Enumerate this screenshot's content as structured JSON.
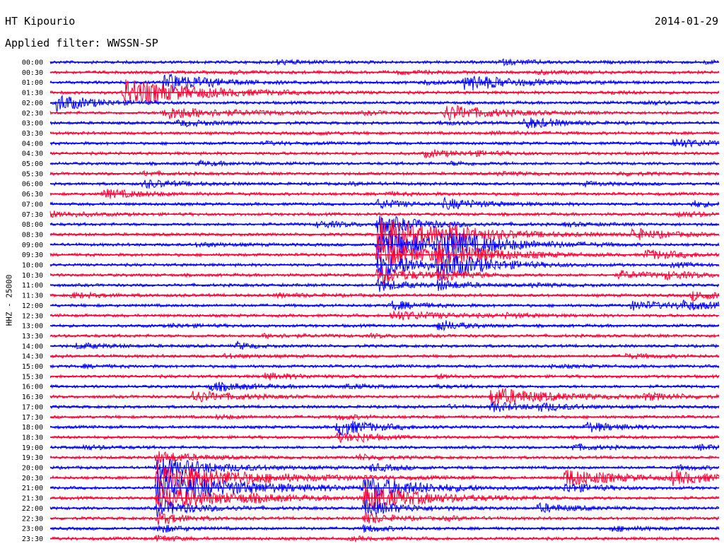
{
  "header": {
    "station": "HT Kipourio",
    "date": "2014-01-29",
    "filter_label": "Applied filter: WWSSN-SP"
  },
  "chart_data": {
    "type": "line",
    "title": "HT Kipourio",
    "subtitle": "Applied filter: WWSSN-SP",
    "ylabel": "HHZ - 25000",
    "xlabel": "",
    "trace_minutes": 30,
    "colors": [
      "#0000ff",
      "#ff0033"
    ],
    "traces": [
      {
        "label": "00:00",
        "events": [
          {
            "t": 0.34,
            "a": 0.6,
            "d": 0.05
          },
          {
            "t": 0.67,
            "a": 0.7,
            "d": 0.06
          },
          {
            "t": 0.98,
            "a": 0.4,
            "d": 0.03
          }
        ]
      },
      {
        "label": "00:30",
        "events": [
          {
            "t": 0.27,
            "a": 0.4,
            "d": 0.04
          },
          {
            "t": 0.52,
            "a": 0.5,
            "d": 0.05
          },
          {
            "t": 0.73,
            "a": 0.5,
            "d": 0.04
          }
        ]
      },
      {
        "label": "01:00",
        "events": [
          {
            "t": 0.17,
            "a": 3.5,
            "d": 0.06
          },
          {
            "t": 0.62,
            "a": 2.6,
            "d": 0.07
          },
          {
            "t": 0.56,
            "a": 0.5,
            "d": 0.04
          }
        ]
      },
      {
        "label": "01:30",
        "events": [
          {
            "t": 0.11,
            "a": 4.5,
            "d": 0.1
          },
          {
            "t": 0.84,
            "a": 0.4,
            "d": 0.03
          }
        ]
      },
      {
        "label": "02:00",
        "events": [
          {
            "t": 0.01,
            "a": 2.8,
            "d": 0.05
          },
          {
            "t": 0.89,
            "a": 0.5,
            "d": 0.04
          }
        ]
      },
      {
        "label": "02:30",
        "events": [
          {
            "t": 0.17,
            "a": 2.0,
            "d": 0.09
          },
          {
            "t": 0.59,
            "a": 2.6,
            "d": 0.07
          },
          {
            "t": 0.47,
            "a": 0.4,
            "d": 0.04
          }
        ]
      },
      {
        "label": "03:00",
        "events": [
          {
            "t": 0.19,
            "a": 1.0,
            "d": 0.05
          },
          {
            "t": 0.71,
            "a": 1.8,
            "d": 0.05
          },
          {
            "t": 0.58,
            "a": 0.5,
            "d": 0.04
          }
        ]
      },
      {
        "label": "03:30",
        "events": [
          {
            "t": 0.39,
            "a": 0.4,
            "d": 0.04
          },
          {
            "t": 0.66,
            "a": 0.5,
            "d": 0.05
          }
        ]
      },
      {
        "label": "04:00",
        "events": [
          {
            "t": 0.93,
            "a": 1.5,
            "d": 0.05
          },
          {
            "t": 0.32,
            "a": 0.4,
            "d": 0.04
          }
        ]
      },
      {
        "label": "04:30",
        "events": [
          {
            "t": 0.56,
            "a": 1.0,
            "d": 0.06
          },
          {
            "t": 0.63,
            "a": 0.5,
            "d": 0.03
          }
        ]
      },
      {
        "label": "05:00",
        "events": [
          {
            "t": 0.22,
            "a": 0.6,
            "d": 0.05
          },
          {
            "t": 0.6,
            "a": 0.5,
            "d": 0.04
          }
        ]
      },
      {
        "label": "05:30",
        "events": [
          {
            "t": 0.14,
            "a": 0.6,
            "d": 0.03
          },
          {
            "t": 0.67,
            "a": 0.5,
            "d": 0.04
          },
          {
            "t": 0.85,
            "a": 0.5,
            "d": 0.04
          }
        ]
      },
      {
        "label": "06:00",
        "events": [
          {
            "t": 0.14,
            "a": 1.3,
            "d": 0.05
          },
          {
            "t": 0.45,
            "a": 0.4,
            "d": 0.04
          },
          {
            "t": 0.8,
            "a": 0.5,
            "d": 0.04
          }
        ]
      },
      {
        "label": "06:30",
        "events": [
          {
            "t": 0.08,
            "a": 1.4,
            "d": 0.06
          },
          {
            "t": 0.5,
            "a": 0.4,
            "d": 0.05
          }
        ]
      },
      {
        "label": "07:00",
        "events": [
          {
            "t": 0.49,
            "a": 1.5,
            "d": 0.04
          },
          {
            "t": 0.59,
            "a": 1.6,
            "d": 0.06
          },
          {
            "t": 0.96,
            "a": 1.0,
            "d": 0.03
          }
        ]
      },
      {
        "label": "07:30",
        "events": [
          {
            "t": 0.0,
            "a": 1.0,
            "d": 0.05
          },
          {
            "t": 0.94,
            "a": 0.8,
            "d": 0.05
          }
        ]
      },
      {
        "label": "08:00",
        "events": [
          {
            "t": 0.4,
            "a": 1.0,
            "d": 0.05
          },
          {
            "t": 0.49,
            "a": 3.0,
            "d": 0.06
          },
          {
            "t": 0.77,
            "a": 0.5,
            "d": 0.05
          }
        ]
      },
      {
        "label": "08:30",
        "events": [
          {
            "t": 0.49,
            "a": 6.0,
            "d": 0.1
          },
          {
            "t": 0.59,
            "a": 2.0,
            "d": 0.04
          },
          {
            "t": 0.87,
            "a": 1.8,
            "d": 0.05
          }
        ]
      },
      {
        "label": "09:00",
        "events": [
          {
            "t": 0.49,
            "a": 5.0,
            "d": 0.09
          },
          {
            "t": 0.58,
            "a": 3.5,
            "d": 0.08
          },
          {
            "t": 0.22,
            "a": 0.6,
            "d": 0.05
          }
        ]
      },
      {
        "label": "09:30",
        "events": [
          {
            "t": 0.49,
            "a": 5.0,
            "d": 0.07
          },
          {
            "t": 0.58,
            "a": 4.0,
            "d": 0.07
          },
          {
            "t": 0.89,
            "a": 1.5,
            "d": 0.06
          }
        ]
      },
      {
        "label": "10:00",
        "events": [
          {
            "t": 0.49,
            "a": 4.5,
            "d": 0.06
          },
          {
            "t": 0.58,
            "a": 4.0,
            "d": 0.07
          },
          {
            "t": 0.93,
            "a": 0.6,
            "d": 0.04
          }
        ]
      },
      {
        "label": "10:30",
        "events": [
          {
            "t": 0.49,
            "a": 3.0,
            "d": 0.05
          },
          {
            "t": 0.58,
            "a": 2.0,
            "d": 0.04
          },
          {
            "t": 0.85,
            "a": 1.2,
            "d": 0.05
          },
          {
            "t": 0.92,
            "a": 1.0,
            "d": 0.05
          }
        ]
      },
      {
        "label": "11:00",
        "events": [
          {
            "t": 0.49,
            "a": 2.0,
            "d": 0.04
          },
          {
            "t": 0.58,
            "a": 1.5,
            "d": 0.04
          },
          {
            "t": 0.72,
            "a": 0.5,
            "d": 0.04
          }
        ]
      },
      {
        "label": "11:30",
        "events": [
          {
            "t": 0.03,
            "a": 0.8,
            "d": 0.05
          },
          {
            "t": 0.34,
            "a": 0.6,
            "d": 0.05
          },
          {
            "t": 0.96,
            "a": 1.5,
            "d": 0.05
          }
        ]
      },
      {
        "label": "12:00",
        "events": [
          {
            "t": 0.51,
            "a": 1.5,
            "d": 0.04
          },
          {
            "t": 0.87,
            "a": 1.4,
            "d": 0.06
          },
          {
            "t": 0.94,
            "a": 1.3,
            "d": 0.05
          }
        ]
      },
      {
        "label": "12:30",
        "events": [
          {
            "t": 0.51,
            "a": 1.5,
            "d": 0.08
          },
          {
            "t": 0.68,
            "a": 0.5,
            "d": 0.04
          }
        ]
      },
      {
        "label": "13:00",
        "events": [
          {
            "t": 0.58,
            "a": 2.0,
            "d": 0.03
          },
          {
            "t": 0.18,
            "a": 0.5,
            "d": 0.05
          }
        ]
      },
      {
        "label": "13:30",
        "events": [
          {
            "t": 0.32,
            "a": 0.6,
            "d": 0.05
          },
          {
            "t": 0.48,
            "a": 0.4,
            "d": 0.04
          }
        ]
      },
      {
        "label": "14:00",
        "events": [
          {
            "t": 0.04,
            "a": 0.8,
            "d": 0.05
          },
          {
            "t": 0.28,
            "a": 1.2,
            "d": 0.02
          }
        ]
      },
      {
        "label": "14:30",
        "events": [
          {
            "t": 0.26,
            "a": 0.5,
            "d": 0.05
          },
          {
            "t": 0.86,
            "a": 0.6,
            "d": 0.05
          }
        ]
      },
      {
        "label": "15:00",
        "events": [
          {
            "t": 0.05,
            "a": 0.4,
            "d": 0.04
          },
          {
            "t": 0.75,
            "a": 0.4,
            "d": 0.04
          }
        ]
      },
      {
        "label": "15:30",
        "events": [
          {
            "t": 0.32,
            "a": 1.0,
            "d": 0.05
          },
          {
            "t": 0.58,
            "a": 0.6,
            "d": 0.03
          }
        ]
      },
      {
        "label": "16:00",
        "events": [
          {
            "t": 0.24,
            "a": 1.4,
            "d": 0.06
          },
          {
            "t": 0.44,
            "a": 0.6,
            "d": 0.04
          },
          {
            "t": 0.57,
            "a": 0.4,
            "d": 0.04
          }
        ]
      },
      {
        "label": "16:30",
        "events": [
          {
            "t": 0.21,
            "a": 2.0,
            "d": 0.06
          },
          {
            "t": 0.66,
            "a": 3.0,
            "d": 0.08
          },
          {
            "t": 0.89,
            "a": 1.0,
            "d": 0.05
          }
        ]
      },
      {
        "label": "17:00",
        "events": [
          {
            "t": 0.66,
            "a": 1.5,
            "d": 0.05
          },
          {
            "t": 0.73,
            "a": 1.0,
            "d": 0.05
          },
          {
            "t": 0.59,
            "a": 0.6,
            "d": 0.02
          }
        ]
      },
      {
        "label": "17:30",
        "events": [
          {
            "t": 0.43,
            "a": 0.8,
            "d": 0.03
          },
          {
            "t": 0.25,
            "a": 0.5,
            "d": 0.04
          }
        ]
      },
      {
        "label": "18:00",
        "events": [
          {
            "t": 0.43,
            "a": 2.8,
            "d": 0.05
          },
          {
            "t": 0.8,
            "a": 1.6,
            "d": 0.05
          }
        ]
      },
      {
        "label": "18:30",
        "events": [
          {
            "t": 0.46,
            "a": 1.0,
            "d": 0.03
          },
          {
            "t": 0.43,
            "a": 1.5,
            "d": 0.03
          }
        ]
      },
      {
        "label": "19:00",
        "events": [
          {
            "t": 0.05,
            "a": 0.6,
            "d": 0.04
          },
          {
            "t": 0.78,
            "a": 1.0,
            "d": 0.04
          },
          {
            "t": 0.97,
            "a": 0.8,
            "d": 0.04
          }
        ]
      },
      {
        "label": "19:30",
        "events": [
          {
            "t": 0.16,
            "a": 2.0,
            "d": 0.05
          },
          {
            "t": 0.46,
            "a": 0.8,
            "d": 0.04
          }
        ]
      },
      {
        "label": "20:00",
        "events": [
          {
            "t": 0.16,
            "a": 3.5,
            "d": 0.08
          },
          {
            "t": 0.48,
            "a": 1.2,
            "d": 0.04
          },
          {
            "t": 0.94,
            "a": 0.6,
            "d": 0.04
          }
        ]
      },
      {
        "label": "20:30",
        "events": [
          {
            "t": 0.16,
            "a": 5.0,
            "d": 0.12
          },
          {
            "t": 0.77,
            "a": 3.0,
            "d": 0.07
          },
          {
            "t": 0.93,
            "a": 2.0,
            "d": 0.06
          }
        ]
      },
      {
        "label": "21:00",
        "events": [
          {
            "t": 0.16,
            "a": 5.0,
            "d": 0.12
          },
          {
            "t": 0.47,
            "a": 3.5,
            "d": 0.08
          },
          {
            "t": 0.77,
            "a": 1.5,
            "d": 0.05
          }
        ]
      },
      {
        "label": "21:30",
        "events": [
          {
            "t": 0.16,
            "a": 4.0,
            "d": 0.1
          },
          {
            "t": 0.47,
            "a": 4.0,
            "d": 0.09
          },
          {
            "t": 0.29,
            "a": 0.5,
            "d": 0.05
          }
        ]
      },
      {
        "label": "22:00",
        "events": [
          {
            "t": 0.16,
            "a": 2.5,
            "d": 0.06
          },
          {
            "t": 0.47,
            "a": 2.5,
            "d": 0.06
          },
          {
            "t": 0.73,
            "a": 1.4,
            "d": 0.05
          }
        ]
      },
      {
        "label": "22:30",
        "events": [
          {
            "t": 0.16,
            "a": 2.0,
            "d": 0.04
          },
          {
            "t": 0.47,
            "a": 1.8,
            "d": 0.04
          },
          {
            "t": 0.59,
            "a": 0.5,
            "d": 0.04
          }
        ]
      },
      {
        "label": "23:00",
        "events": [
          {
            "t": 0.16,
            "a": 1.5,
            "d": 0.03
          },
          {
            "t": 0.47,
            "a": 1.2,
            "d": 0.03
          },
          {
            "t": 0.84,
            "a": 0.8,
            "d": 0.05
          }
        ]
      },
      {
        "label": "23:30",
        "events": [
          {
            "t": 0.16,
            "a": 1.0,
            "d": 0.03
          },
          {
            "t": 0.45,
            "a": 0.5,
            "d": 0.04
          }
        ]
      }
    ]
  }
}
